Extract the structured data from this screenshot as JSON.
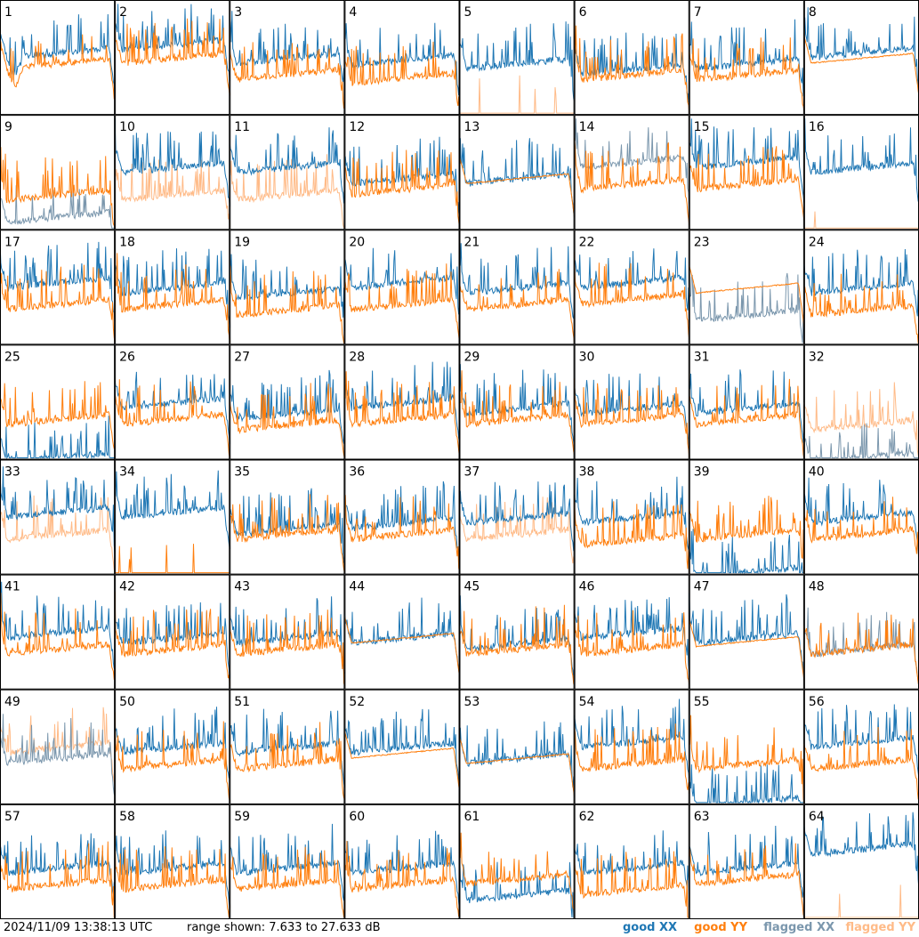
{
  "footer": {
    "timestamp": "2024/11/09 13:38:13 UTC",
    "range": "range shown: 7.633 to 27.633 dB"
  },
  "legend": {
    "good_xx": "good XX",
    "good_yy": "good YY",
    "flagged_xx": "flagged XX",
    "flagged_yy": "flagged YY"
  },
  "colors": {
    "good_xx": "#1f77b4",
    "good_yy": "#ff7f0e",
    "flagged_xx": "#7b97ad",
    "flagged_yy": "#ffbb88"
  },
  "chart_data": {
    "type": "line",
    "layout": "8x8 small-multiples grid of per-antenna spectra",
    "y_range_db": [
      7.633,
      27.633
    ],
    "panels": [
      {
        "label": "1",
        "xx": "good",
        "yy": "good",
        "xx_level": 0.55,
        "yy_level": 0.45,
        "xx_dip": true,
        "yy_dip": true
      },
      {
        "label": "2",
        "xx": "good",
        "yy": "good",
        "xx_level": 0.62,
        "yy_level": 0.5
      },
      {
        "label": "3",
        "xx": "good",
        "yy": "good",
        "xx_level": 0.5,
        "yy_level": 0.35
      },
      {
        "label": "4",
        "xx": "good",
        "yy": "good",
        "xx_level": 0.48,
        "yy_level": 0.32
      },
      {
        "label": "5",
        "xx": "good",
        "yy": "flagged",
        "xx_level": 0.45,
        "yy_level": 0.0,
        "yy_spikes_only": true
      },
      {
        "label": "6",
        "xx": "good",
        "yy": "good",
        "xx_level": 0.4,
        "yy_level": 0.35
      },
      {
        "label": "7",
        "xx": "good",
        "yy": "good",
        "xx_level": 0.45,
        "yy_level": 0.35
      },
      {
        "label": "8",
        "xx": "good",
        "yy": "good",
        "xx_level": 0.55,
        "yy_level": 0.5,
        "yy_smooth": true
      },
      {
        "label": "9",
        "xx": "flagged",
        "yy": "good",
        "xx_level": 0.1,
        "yy_level": 0.3
      },
      {
        "label": "10",
        "xx": "good",
        "yy": "flagged",
        "xx_level": 0.55,
        "yy_level": 0.3
      },
      {
        "label": "11",
        "xx": "good",
        "yy": "flagged",
        "xx_level": 0.55,
        "yy_level": 0.3
      },
      {
        "label": "12",
        "xx": "good",
        "yy": "good",
        "xx_level": 0.45,
        "yy_level": 0.35
      },
      {
        "label": "13",
        "xx": "good",
        "yy": "good",
        "xx_level": 0.45,
        "yy_level": 0.45,
        "yy_smooth": true
      },
      {
        "label": "14",
        "xx": "flagged",
        "yy": "good",
        "xx_level": 0.6,
        "yy_level": 0.4
      },
      {
        "label": "15",
        "xx": "good",
        "yy": "good",
        "xx_level": 0.6,
        "yy_level": 0.4
      },
      {
        "label": "16",
        "xx": "good",
        "yy": "flagged",
        "xx_level": 0.55,
        "yy_level": 0.0,
        "yy_spikes_only": true
      },
      {
        "label": "17",
        "xx": "good",
        "yy": "good",
        "xx_level": 0.55,
        "yy_level": 0.35
      },
      {
        "label": "18",
        "xx": "good",
        "yy": "good",
        "xx_level": 0.5,
        "yy_level": 0.35
      },
      {
        "label": "19",
        "xx": "good",
        "yy": "good",
        "xx_level": 0.45,
        "yy_level": 0.3
      },
      {
        "label": "20",
        "xx": "good",
        "yy": "good",
        "xx_level": 0.55,
        "yy_level": 0.35
      },
      {
        "label": "21",
        "xx": "good",
        "yy": "good",
        "xx_level": 0.5,
        "yy_level": 0.35
      },
      {
        "label": "22",
        "xx": "good",
        "yy": "good",
        "xx_level": 0.55,
        "yy_level": 0.4
      },
      {
        "label": "23",
        "xx": "flagged",
        "yy": "good",
        "xx_level": 0.25,
        "yy_level": 0.5,
        "yy_smooth": true
      },
      {
        "label": "24",
        "xx": "good",
        "yy": "good",
        "xx_level": 0.5,
        "yy_level": 0.3
      },
      {
        "label": "25",
        "xx": "good",
        "yy": "good",
        "xx_level": 0.0,
        "yy_level": 0.35
      },
      {
        "label": "26",
        "xx": "good",
        "yy": "good",
        "xx_level": 0.5,
        "yy_level": 0.35
      },
      {
        "label": "27",
        "xx": "good",
        "yy": "good",
        "xx_level": 0.4,
        "yy_level": 0.3
      },
      {
        "label": "28",
        "xx": "good",
        "yy": "good",
        "xx_level": 0.5,
        "yy_level": 0.35
      },
      {
        "label": "29",
        "xx": "good",
        "yy": "good",
        "xx_level": 0.45,
        "yy_level": 0.35
      },
      {
        "label": "30",
        "xx": "good",
        "yy": "good",
        "xx_level": 0.45,
        "yy_level": 0.35
      },
      {
        "label": "31",
        "xx": "good",
        "yy": "good",
        "xx_level": 0.45,
        "yy_level": 0.35
      },
      {
        "label": "32",
        "xx": "flagged",
        "yy": "flagged",
        "xx_level": 0.0,
        "yy_level": 0.3
      },
      {
        "label": "33",
        "xx": "good",
        "yy": "flagged",
        "xx_level": 0.55,
        "yy_level": 0.35
      },
      {
        "label": "34",
        "xx": "good",
        "yy": "good",
        "xx_level": 0.55,
        "yy_level": 0.0,
        "yy_spikes_only": true
      },
      {
        "label": "35",
        "xx": "good",
        "yy": "good",
        "xx_level": 0.4,
        "yy_level": 0.35
      },
      {
        "label": "36",
        "xx": "good",
        "yy": "good",
        "xx_level": 0.45,
        "yy_level": 0.35
      },
      {
        "label": "37",
        "xx": "good",
        "yy": "flagged",
        "xx_level": 0.5,
        "yy_level": 0.35
      },
      {
        "label": "38",
        "xx": "good",
        "yy": "good",
        "xx_level": 0.5,
        "yy_level": 0.3
      },
      {
        "label": "39",
        "xx": "good",
        "yy": "good",
        "xx_level": 0.0,
        "yy_level": 0.35
      },
      {
        "label": "40",
        "xx": "good",
        "yy": "good",
        "xx_level": 0.5,
        "yy_level": 0.35
      },
      {
        "label": "41",
        "xx": "good",
        "yy": "good",
        "xx_level": 0.5,
        "yy_level": 0.35
      },
      {
        "label": "42",
        "xx": "good",
        "yy": "good",
        "xx_level": 0.45,
        "yy_level": 0.35
      },
      {
        "label": "43",
        "xx": "good",
        "yy": "good",
        "xx_level": 0.45,
        "yy_level": 0.35
      },
      {
        "label": "44",
        "xx": "good",
        "yy": "good",
        "xx_level": 0.45,
        "yy_level": 0.45,
        "yy_smooth": true
      },
      {
        "label": "45",
        "xx": "good",
        "yy": "good",
        "xx_level": 0.4,
        "yy_level": 0.35
      },
      {
        "label": "46",
        "xx": "good",
        "yy": "good",
        "xx_level": 0.5,
        "yy_level": 0.35
      },
      {
        "label": "47",
        "xx": "good",
        "yy": "good",
        "xx_level": 0.45,
        "yy_level": 0.42,
        "yy_smooth": true
      },
      {
        "label": "48",
        "xx": "flagged",
        "yy": "good",
        "xx_level": 0.35,
        "yy_level": 0.35
      },
      {
        "label": "49",
        "xx": "flagged",
        "yy": "flagged",
        "xx_level": 0.4,
        "yy_level": 0.5
      },
      {
        "label": "50",
        "xx": "good",
        "yy": "good",
        "xx_level": 0.5,
        "yy_level": 0.35
      },
      {
        "label": "51",
        "xx": "good",
        "yy": "good",
        "xx_level": 0.5,
        "yy_level": 0.35
      },
      {
        "label": "52",
        "xx": "good",
        "yy": "good",
        "xx_level": 0.5,
        "yy_level": 0.45,
        "yy_smooth": true
      },
      {
        "label": "53",
        "xx": "good",
        "yy": "good",
        "xx_level": 0.4,
        "yy_level": 0.4,
        "yy_smooth": true
      },
      {
        "label": "54",
        "xx": "good",
        "yy": "good",
        "xx_level": 0.55,
        "yy_level": 0.35
      },
      {
        "label": "55",
        "xx": "good",
        "yy": "good",
        "xx_level": 0.0,
        "yy_level": 0.35
      },
      {
        "label": "56",
        "xx": "good",
        "yy": "good",
        "xx_level": 0.55,
        "yy_level": 0.35
      },
      {
        "label": "57",
        "xx": "good",
        "yy": "good",
        "xx_level": 0.45,
        "yy_level": 0.3
      },
      {
        "label": "58",
        "xx": "good",
        "yy": "good",
        "xx_level": 0.45,
        "yy_level": 0.3
      },
      {
        "label": "59",
        "xx": "good",
        "yy": "good",
        "xx_level": 0.45,
        "yy_level": 0.3
      },
      {
        "label": "60",
        "xx": "good",
        "yy": "good",
        "xx_level": 0.45,
        "yy_level": 0.3
      },
      {
        "label": "61",
        "xx": "good",
        "yy": "good",
        "xx_level": 0.2,
        "yy_level": 0.35
      },
      {
        "label": "62",
        "xx": "good",
        "yy": "good",
        "xx_level": 0.45,
        "yy_level": 0.25
      },
      {
        "label": "63",
        "xx": "good",
        "yy": "good",
        "xx_level": 0.45,
        "yy_level": 0.35
      },
      {
        "label": "64",
        "xx": "good",
        "yy": "flagged",
        "xx_level": 0.62,
        "yy_level": 0.0,
        "yy_spikes_only": true
      }
    ]
  }
}
